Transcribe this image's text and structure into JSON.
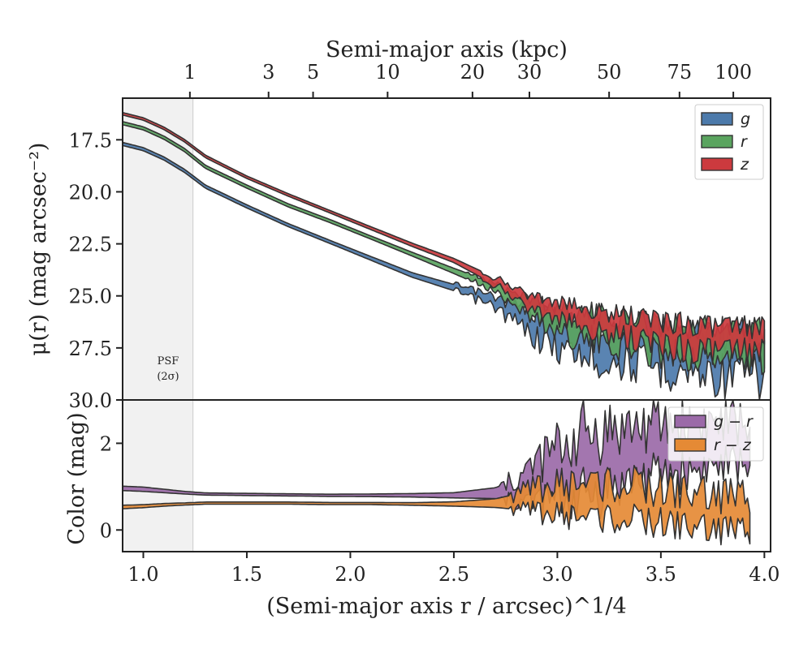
{
  "chart_data": [
    {
      "type": "area",
      "panel": "surface-brightness",
      "top_axis_title": "Semi-major axis (kpc)",
      "top_ticks": [
        "1",
        "3",
        "5",
        "10",
        "20",
        "30",
        "50",
        "75",
        "100"
      ],
      "top_tick_values": [
        1,
        3,
        5,
        10,
        20,
        30,
        50,
        75,
        100
      ],
      "ylabel": "μ(r) (mag arcsec⁻²)",
      "ylim": [
        30.0,
        15.5
      ],
      "y_inverted": true,
      "yticks": [
        "17.5",
        "20.0",
        "22.5",
        "25.0",
        "27.5",
        "30.0"
      ],
      "ytick_values": [
        17.5,
        20.0,
        22.5,
        25.0,
        27.5,
        30.0
      ],
      "xlim": [
        0.9,
        4.03
      ],
      "psf_region": {
        "x_max": 1.24,
        "label_line1": "PSF",
        "label_line2": "(2σ)"
      },
      "legend": {
        "placement": "upper right",
        "entries": [
          "g",
          "r",
          "z"
        ]
      },
      "x": [
        0.9,
        1.0,
        1.1,
        1.2,
        1.3,
        1.5,
        1.7,
        1.9,
        2.1,
        2.3,
        2.5,
        2.7,
        2.8,
        2.9,
        3.0,
        3.1,
        3.2,
        3.4,
        3.6,
        3.8,
        3.93,
        4.0
      ],
      "series": [
        {
          "name": "g",
          "color": "#4c7aab",
          "values": [
            17.7,
            17.95,
            18.4,
            19.0,
            19.75,
            20.7,
            21.6,
            22.4,
            23.2,
            24.0,
            24.6,
            25.3,
            25.9,
            26.4,
            26.8,
            27.0,
            27.2,
            27.4,
            27.6,
            27.8,
            27.9,
            28.2
          ],
          "band": [
            0.15,
            0.15,
            0.15,
            0.15,
            0.15,
            0.15,
            0.15,
            0.15,
            0.18,
            0.22,
            0.3,
            0.5,
            0.8,
            1.2,
            1.4,
            1.6,
            1.7,
            1.8,
            1.9,
            2.0,
            2.0,
            2.0
          ]
        },
        {
          "name": "r",
          "color": "#5aa45f",
          "values": [
            16.7,
            16.95,
            17.4,
            18.0,
            18.8,
            19.75,
            20.65,
            21.4,
            22.2,
            23.0,
            23.8,
            24.6,
            25.1,
            25.7,
            26.1,
            26.4,
            26.6,
            26.9,
            27.1,
            27.3,
            27.4,
            27.4
          ],
          "band": [
            0.15,
            0.15,
            0.15,
            0.15,
            0.15,
            0.15,
            0.15,
            0.15,
            0.15,
            0.18,
            0.25,
            0.4,
            0.6,
            0.9,
            1.1,
            1.2,
            1.3,
            1.3,
            1.4,
            1.4,
            1.4,
            1.4
          ]
        },
        {
          "name": "z",
          "color": "#cc3a3e",
          "values": [
            16.25,
            16.5,
            16.95,
            17.55,
            18.3,
            19.3,
            20.15,
            20.95,
            21.75,
            22.55,
            23.3,
            24.3,
            24.9,
            25.4,
            25.7,
            26.0,
            26.3,
            26.6,
            26.9,
            27.1,
            27.1,
            27.1
          ],
          "band": [
            0.12,
            0.12,
            0.12,
            0.12,
            0.12,
            0.12,
            0.12,
            0.12,
            0.14,
            0.16,
            0.2,
            0.35,
            0.5,
            0.7,
            0.8,
            0.9,
            1.0,
            1.1,
            1.2,
            1.2,
            1.2,
            1.2
          ]
        }
      ]
    },
    {
      "type": "area",
      "panel": "color",
      "xlabel": "(Semi-major axis r / arcsec)^1/4",
      "xticks": [
        "1.0",
        "1.5",
        "2.0",
        "2.5",
        "3.0",
        "3.5",
        "4.0"
      ],
      "xtick_values": [
        1.0,
        1.5,
        2.0,
        2.5,
        3.0,
        3.5,
        4.0
      ],
      "xlim": [
        0.9,
        4.03
      ],
      "ylabel": "Color (mag)",
      "ylim": [
        -0.5,
        3.0
      ],
      "yticks": [
        "0",
        "2"
      ],
      "ytick_values": [
        0,
        2
      ],
      "legend": {
        "placement": "upper right",
        "entries": [
          "g − r",
          "r − z"
        ]
      },
      "x": [
        0.9,
        1.0,
        1.1,
        1.2,
        1.3,
        1.5,
        1.7,
        1.9,
        2.1,
        2.3,
        2.5,
        2.7,
        2.8,
        2.9,
        3.0,
        3.1,
        3.2,
        3.4,
        3.6,
        3.8,
        3.93
      ],
      "series": [
        {
          "name": "g − r",
          "color": "#9b6aa8",
          "values": [
            0.96,
            0.94,
            0.9,
            0.86,
            0.83,
            0.82,
            0.81,
            0.8,
            0.8,
            0.8,
            0.8,
            0.85,
            0.9,
            1.1,
            1.3,
            1.5,
            1.6,
            1.8,
            1.9,
            2.0,
            2.0
          ],
          "band": [
            0.1,
            0.1,
            0.08,
            0.06,
            0.05,
            0.05,
            0.05,
            0.05,
            0.06,
            0.08,
            0.12,
            0.25,
            0.5,
            0.9,
            1.2,
            1.4,
            1.4,
            1.2,
            1.1,
            1.0,
            0.9
          ]
        },
        {
          "name": "r − z",
          "color": "#e58a35",
          "values": [
            0.53,
            0.55,
            0.58,
            0.6,
            0.62,
            0.62,
            0.62,
            0.61,
            0.61,
            0.6,
            0.6,
            0.62,
            0.65,
            0.7,
            0.7,
            0.7,
            0.7,
            0.6,
            0.5,
            0.4,
            0.4
          ],
          "band": [
            0.08,
            0.07,
            0.06,
            0.05,
            0.05,
            0.05,
            0.05,
            0.05,
            0.05,
            0.06,
            0.1,
            0.2,
            0.35,
            0.55,
            0.7,
            0.75,
            0.8,
            0.8,
            0.8,
            0.8,
            0.8
          ]
        }
      ]
    }
  ]
}
